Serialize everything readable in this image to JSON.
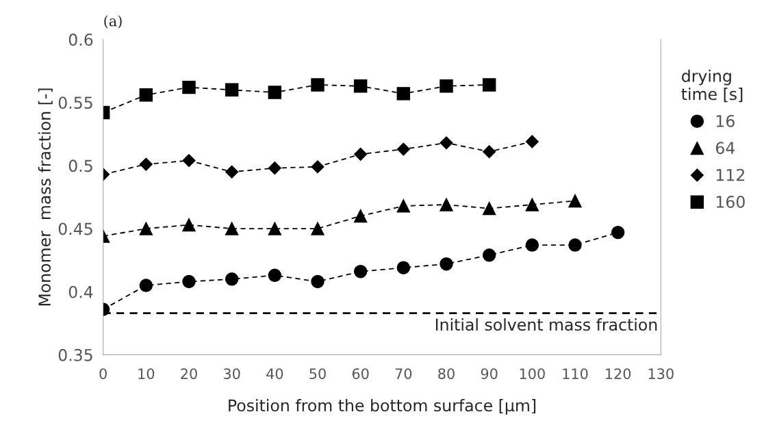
{
  "chart_data": {
    "type": "line",
    "title": "(a)",
    "xlabel": "Position from the bottom surface [μm]",
    "ylabel": "Monomer  mass fraction [-]",
    "legend_title": "drying\ntime [s]",
    "series": [
      {
        "name": "16",
        "color": "#000000",
        "marker": "circle",
        "x": [
          0,
          10,
          20,
          30,
          40,
          50,
          60,
          70,
          80,
          90,
          100,
          110,
          120
        ],
        "values": [
          0.386,
          0.405,
          0.408,
          0.41,
          0.413,
          0.408,
          0.416,
          0.419,
          0.422,
          0.429,
          0.437,
          0.437,
          0.447
        ]
      },
      {
        "name": "64",
        "color": "#000000",
        "marker": "triangle",
        "x": [
          0,
          10,
          20,
          30,
          40,
          50,
          60,
          70,
          80,
          90,
          100,
          110
        ],
        "values": [
          0.444,
          0.45,
          0.453,
          0.45,
          0.45,
          0.45,
          0.46,
          0.468,
          0.469,
          0.466,
          0.469,
          0.472
        ]
      },
      {
        "name": "112",
        "color": "#000000",
        "marker": "diamond",
        "x": [
          0,
          10,
          20,
          30,
          40,
          50,
          60,
          70,
          80,
          90,
          100
        ],
        "values": [
          0.493,
          0.501,
          0.504,
          0.495,
          0.498,
          0.499,
          0.509,
          0.513,
          0.518,
          0.511,
          0.519
        ]
      },
      {
        "name": "160",
        "color": "#000000",
        "marker": "square",
        "x": [
          0,
          10,
          20,
          30,
          40,
          50,
          60,
          70,
          80,
          90
        ],
        "values": [
          0.542,
          0.556,
          0.562,
          0.56,
          0.558,
          0.564,
          0.563,
          0.557,
          0.563,
          0.564
        ]
      }
    ],
    "line_style": "dashed",
    "ref_lines": [
      {
        "axis": "y",
        "value": 0.383,
        "label": "Initial solvent mass fraction",
        "color": "#000000",
        "line_style": "dashed"
      }
    ],
    "xlim": [
      0,
      130
    ],
    "xticks": [
      0,
      10,
      20,
      30,
      40,
      50,
      60,
      70,
      80,
      90,
      100,
      110,
      120,
      130
    ],
    "ylim": [
      0.35,
      0.6
    ],
    "yticks": [
      0.35,
      0.4,
      0.45,
      0.5,
      0.55,
      0.6
    ],
    "grid": false,
    "legend": "right"
  }
}
